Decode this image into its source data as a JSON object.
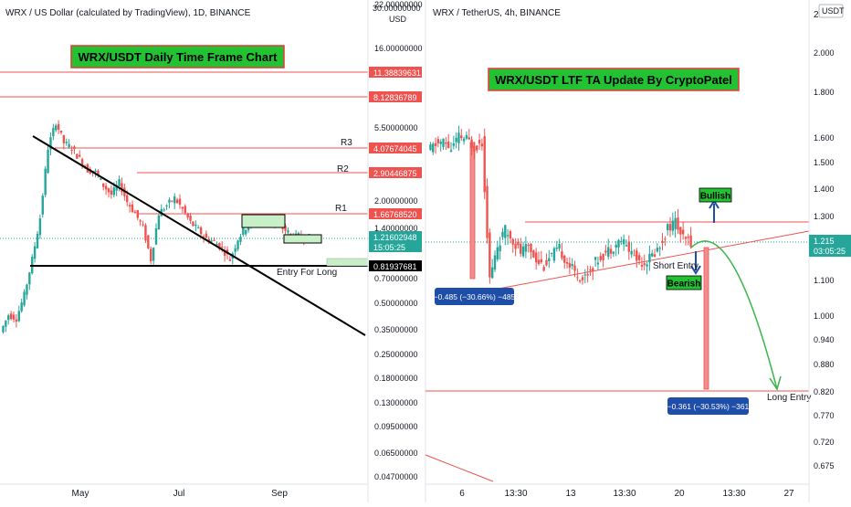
{
  "colors": {
    "up": "#26a69a",
    "down": "#ef5350",
    "level": "#ef5350",
    "support": "#000000",
    "green_title_bg": "#22c232",
    "green_title_border": "#e53935",
    "green_box": "#c8f0c8",
    "blue_label": "#1e4ea8",
    "dotted_green": "#26a69a",
    "target_arrow": "#3ab54a"
  },
  "left_panel": {
    "header": "WRX / US Dollar (calculated by TradingView), 1D, BINANCE",
    "title_box": "WRX/USDT Daily Time Frame Chart",
    "resistance_labels": [
      "R3",
      "R2",
      "R1"
    ],
    "entry_label": "Entry For Long",
    "x_ticks": [
      "May",
      "Jul",
      "Sep"
    ],
    "price_axis_unit": "USD",
    "price_ticks": [
      "30.00000000",
      "22.00000000",
      "16.00000000",
      "5.50000000",
      "2.00000000",
      "1.40000000",
      "0.70000000",
      "0.50000000",
      "0.35000000",
      "0.25000000",
      "0.18000000",
      "0.13000000",
      "0.09500000",
      "0.06500000",
      "0.04700000"
    ],
    "price_labels": [
      {
        "text": "11.38839631",
        "color": "#ef5350"
      },
      {
        "text": "8.12836789",
        "color": "#ef5350"
      },
      {
        "text": "4.07674045",
        "color": "#ef5350"
      },
      {
        "text": "2.90446875",
        "color": "#ef5350"
      },
      {
        "text": "1.66768520",
        "color": "#ef5350"
      },
      {
        "text": "1.21602948",
        "color": "#26a69a"
      },
      {
        "text": "15:05:25",
        "color": "#26a69a"
      },
      {
        "text": "0.81937681",
        "color": "#000000"
      }
    ]
  },
  "right_panel": {
    "header": "WRX / TetherUS, 4h, BINANCE",
    "title_box": "WRX/USDT LTF TA Update By CryptoPatel",
    "bullish_label": "Bullish",
    "bearish_label": "Bearish",
    "short_entry_label": "Short Entry",
    "long_entry_label": "Long Entry",
    "measure_top": "−0.485 (−30.66%) −485",
    "measure_bottom": "−0.361 (−30.53%) −361",
    "x_ticks": [
      "6",
      "13:30",
      "13",
      "13:30",
      "20",
      "13:30",
      "27"
    ],
    "price_axis_unit": "USDT",
    "axis_top_number": "2",
    "price_ticks": [
      "2.000",
      "1.800",
      "1.600",
      "1.500",
      "1.400",
      "1.300",
      "1.100",
      "1.000",
      "0.940",
      "0.880",
      "0.820",
      "0.770",
      "0.720",
      "0.675"
    ],
    "current_price": "1.215",
    "current_timer": "03:05:25"
  },
  "chart_data": [
    {
      "type": "line",
      "title": "WRX/USDT Daily Time Frame Chart",
      "xlabel": "",
      "ylabel": "USD",
      "scale": "log",
      "x_ticks": [
        "May",
        "Jul",
        "Sep"
      ],
      "ylim": [
        0.045,
        30
      ],
      "grid": false,
      "series": [
        {
          "values": [
            0.33,
            0.42,
            0.4,
            0.55,
            0.9,
            1.6,
            4.2,
            6.0,
            4.5,
            4.2,
            3.6,
            3.1,
            3.0,
            2.5,
            2.2,
            2.6,
            2.0,
            1.7,
            1.4,
            0.9,
            1.7,
            1.9,
            2.1,
            1.8,
            1.5,
            1.35,
            1.2,
            1.15,
            1.05,
            0.9,
            1.2,
            1.4,
            1.6,
            1.55,
            1.5,
            1.45,
            1.35,
            1.22,
            1.25,
            1.22
          ]
        }
      ],
      "horizontal_levels": [
        11.38839631,
        8.12836789,
        4.07674045,
        2.90446875,
        1.6676852,
        0.81937681
      ],
      "current_price": 1.21602948,
      "annotations": [
        "R3",
        "R2",
        "R1",
        "Entry For Long"
      ]
    },
    {
      "type": "line",
      "title": "WRX/USDT LTF TA Update By CryptoPatel",
      "xlabel": "",
      "ylabel": "USDT",
      "scale": "log",
      "x_ticks": [
        "6",
        "13:30",
        "13",
        "13:30",
        "20",
        "13:30",
        "27"
      ],
      "ylim": [
        0.66,
        2.1
      ],
      "grid": false,
      "series": [
        {
          "values": [
            1.54,
            1.57,
            1.58,
            1.55,
            1.6,
            1.59,
            1.56,
            1.58,
            1.1,
            1.2,
            1.25,
            1.22,
            1.18,
            1.2,
            1.16,
            1.14,
            1.17,
            1.19,
            1.15,
            1.12,
            1.1,
            1.13,
            1.16,
            1.18,
            1.2,
            1.22,
            1.19,
            1.16,
            1.15,
            1.17,
            1.2,
            1.26,
            1.28,
            1.22,
            1.215
          ]
        }
      ],
      "horizontal_levels": [
        1.28,
        0.82
      ],
      "current_price": 1.215,
      "measurements": [
        "−0.485 (−30.66%) −485",
        "−0.361 (−30.53%) −361"
      ],
      "annotations": [
        "Bullish",
        "Bearish",
        "Short Entry",
        "Long Entry"
      ]
    }
  ]
}
